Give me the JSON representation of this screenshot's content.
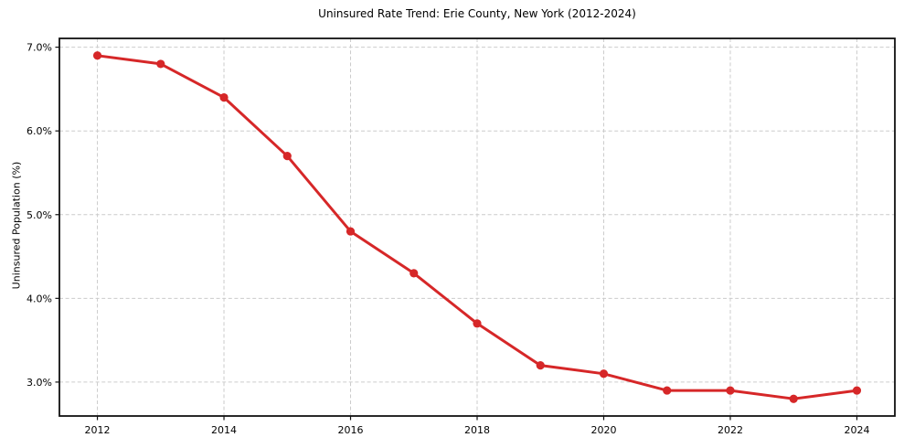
{
  "chart_data": {
    "type": "line",
    "title": "Uninsured Rate Trend: Erie County, New York (2012-2024)",
    "xlabel": "",
    "ylabel": "Uninsured Population (%)",
    "series": [
      {
        "name": "Uninsured Rate",
        "x": [
          2012,
          2013,
          2014,
          2015,
          2016,
          2017,
          2018,
          2019,
          2020,
          2021,
          2022,
          2023,
          2024
        ],
        "values": [
          6.9,
          6.8,
          6.4,
          5.7,
          4.8,
          4.3,
          3.7,
          3.2,
          3.1,
          2.9,
          2.9,
          2.8,
          2.9
        ]
      }
    ],
    "xticks": [
      2012,
      2014,
      2016,
      2018,
      2020,
      2022,
      2024
    ],
    "xtick_labels": [
      "2012",
      "2014",
      "2016",
      "2018",
      "2020",
      "2022",
      "2024"
    ],
    "yticks": [
      3.0,
      4.0,
      5.0,
      6.0,
      7.0
    ],
    "ytick_labels": [
      "3.0%",
      "4.0%",
      "5.0%",
      "6.0%",
      "7.0%"
    ],
    "xlim": [
      2011.4,
      2024.6
    ],
    "ylim": [
      2.595,
      7.105
    ],
    "grid": true,
    "legend": "none",
    "colors": {
      "line": "#d62728",
      "marker": "#d62728",
      "grid": "#cccccc",
      "spine": "#111111",
      "background": "#ffffff"
    }
  }
}
